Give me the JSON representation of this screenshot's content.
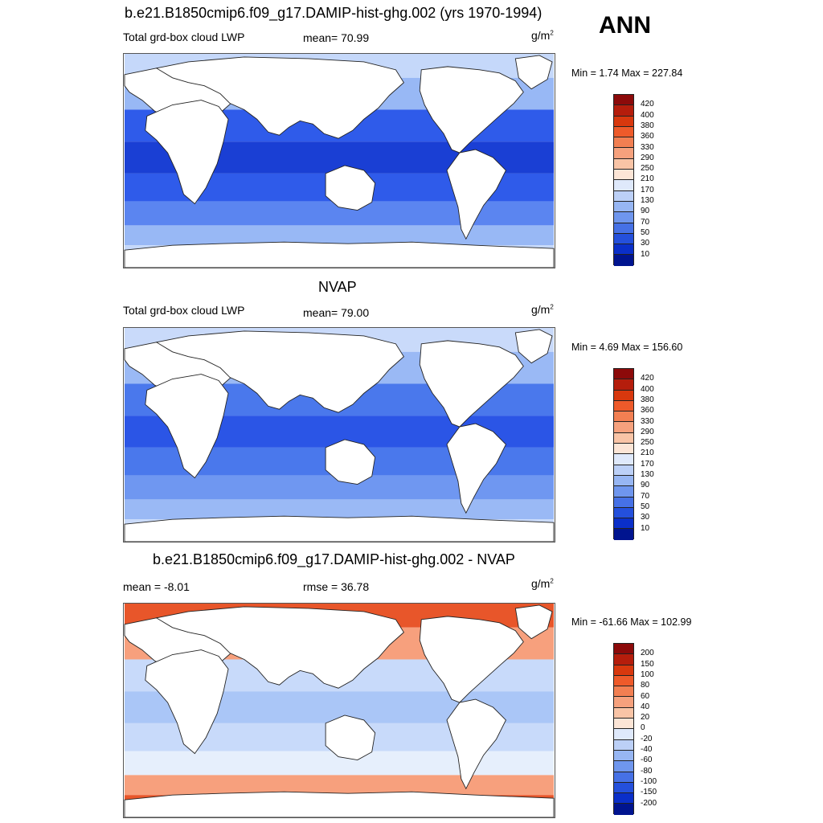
{
  "season": "ANN",
  "panels": [
    {
      "title": "b.e21.B1850cmip6.f09_g17.DAMIP-hist-ghg.002 (yrs 1970-1994)",
      "left_label": "Total grd-box cloud LWP",
      "center_label": "mean=  70.99",
      "units_base": "g/m",
      "units_exp": "2",
      "minmax": "Min =   1.74 Max = 227.84",
      "field_colors": [
        "#1a3fd4",
        "#2f5bea",
        "#5b85f0",
        "#98b8f5",
        "#c5d8fa"
      ]
    },
    {
      "title": "NVAP",
      "left_label": "Total grd-box cloud LWP",
      "center_label": "mean=  79.00",
      "units_base": "g/m",
      "units_exp": "2",
      "minmax": "Min =   4.69 Max = 156.60",
      "field_colors": [
        "#2b55e6",
        "#4a78ec",
        "#6f97f1",
        "#9ab9f5",
        "#c9dafa"
      ]
    },
    {
      "title": "b.e21.B1850cmip6.f09_g17.DAMIP-hist-ghg.002 - NVAP",
      "left_label": "mean =  -8.01",
      "center_label": "rmse =  36.78",
      "units_base": "g/m",
      "units_exp": "2",
      "minmax": "Min = -61.66 Max = 102.99",
      "field_colors": [
        "#aac6f7",
        "#c8dafa",
        "#e6effc",
        "#f7a07d",
        "#e8562a"
      ]
    }
  ],
  "colorbar_absolute": {
    "labels": [
      "420",
      "400",
      "380",
      "360",
      "330",
      "290",
      "250",
      "210",
      "170",
      "130",
      "90",
      "70",
      "50",
      "30",
      "10"
    ],
    "colors": [
      "#8c0a0a",
      "#b51d0c",
      "#d8380e",
      "#ee5a2a",
      "#f27f52",
      "#f6a17d",
      "#f9c4a6",
      "#fce5d6",
      "#dfe9fb",
      "#bcd0f7",
      "#97b6f3",
      "#6f96ee",
      "#4671e6",
      "#2450dc",
      "#0a2fc9",
      "#00148f"
    ]
  },
  "colorbar_diff": {
    "labels": [
      "200",
      "150",
      "100",
      "80",
      "60",
      "40",
      "20",
      "0",
      "-20",
      "-40",
      "-60",
      "-80",
      "-100",
      "-150",
      "-200"
    ],
    "colors": [
      "#8c0a0a",
      "#b51d0c",
      "#d8380e",
      "#ee5a2a",
      "#f27f52",
      "#f6a17d",
      "#f9c4a6",
      "#fce5d6",
      "#dfe9fb",
      "#bcd0f7",
      "#97b6f3",
      "#6f96ee",
      "#4671e6",
      "#2450dc",
      "#0a2fc9",
      "#00148f"
    ]
  }
}
